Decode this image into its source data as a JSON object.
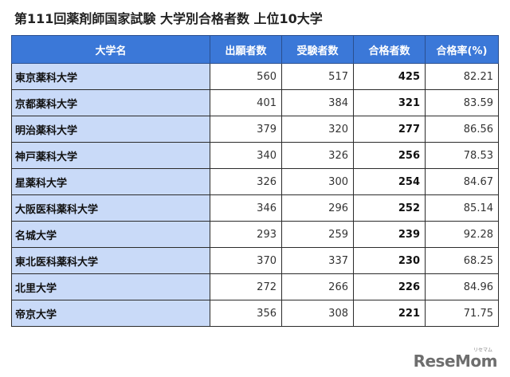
{
  "title": "第111回薬剤師国家試験 大学別合格者数 上位10大学",
  "table": {
    "headers": [
      "大学名",
      "出願者数",
      "受験者数",
      "合格者数",
      "合格率(%)"
    ],
    "rows": [
      {
        "name": "東京薬科大学",
        "applicants": "560",
        "examinees": "517",
        "passed": "425",
        "rate": "82.21"
      },
      {
        "name": "京都薬科大学",
        "applicants": "401",
        "examinees": "384",
        "passed": "321",
        "rate": "83.59"
      },
      {
        "name": "明治薬科大学",
        "applicants": "379",
        "examinees": "320",
        "passed": "277",
        "rate": "86.56"
      },
      {
        "name": "神戸薬科大学",
        "applicants": "340",
        "examinees": "326",
        "passed": "256",
        "rate": "78.53"
      },
      {
        "name": "星薬科大学",
        "applicants": "326",
        "examinees": "300",
        "passed": "254",
        "rate": "84.67"
      },
      {
        "name": "大阪医科薬科大学",
        "applicants": "346",
        "examinees": "296",
        "passed": "252",
        "rate": "85.14"
      },
      {
        "name": "名城大学",
        "applicants": "293",
        "examinees": "259",
        "passed": "239",
        "rate": "92.28"
      },
      {
        "name": "東北医科薬科大学",
        "applicants": "370",
        "examinees": "337",
        "passed": "230",
        "rate": "68.25"
      },
      {
        "name": "北里大学",
        "applicants": "272",
        "examinees": "266",
        "passed": "226",
        "rate": "84.96"
      },
      {
        "name": "帝京大学",
        "applicants": "356",
        "examinees": "308",
        "passed": "221",
        "rate": "71.75"
      }
    ]
  },
  "logo": {
    "text": "ReseMom",
    "ruby": "リセマム"
  },
  "colors": {
    "header_bg": "#3b78d8",
    "name_col_bg": "#c9daf8"
  },
  "chart_data": {
    "type": "table",
    "title": "第111回薬剤師国家試験 大学別合格者数 上位10大学",
    "columns": [
      "大学名",
      "出願者数",
      "受験者数",
      "合格者数",
      "合格率(%)"
    ],
    "rows": [
      [
        "東京薬科大学",
        560,
        517,
        425,
        82.21
      ],
      [
        "京都薬科大学",
        401,
        384,
        321,
        83.59
      ],
      [
        "明治薬科大学",
        379,
        320,
        277,
        86.56
      ],
      [
        "神戸薬科大学",
        340,
        326,
        256,
        78.53
      ],
      [
        "星薬科大学",
        326,
        300,
        254,
        84.67
      ],
      [
        "大阪医科薬科大学",
        346,
        296,
        252,
        85.14
      ],
      [
        "名城大学",
        293,
        259,
        239,
        92.28
      ],
      [
        "東北医科薬科大学",
        370,
        337,
        230,
        68.25
      ],
      [
        "北里大学",
        272,
        266,
        226,
        84.96
      ],
      [
        "帝京大学",
        356,
        308,
        221,
        71.75
      ]
    ]
  }
}
